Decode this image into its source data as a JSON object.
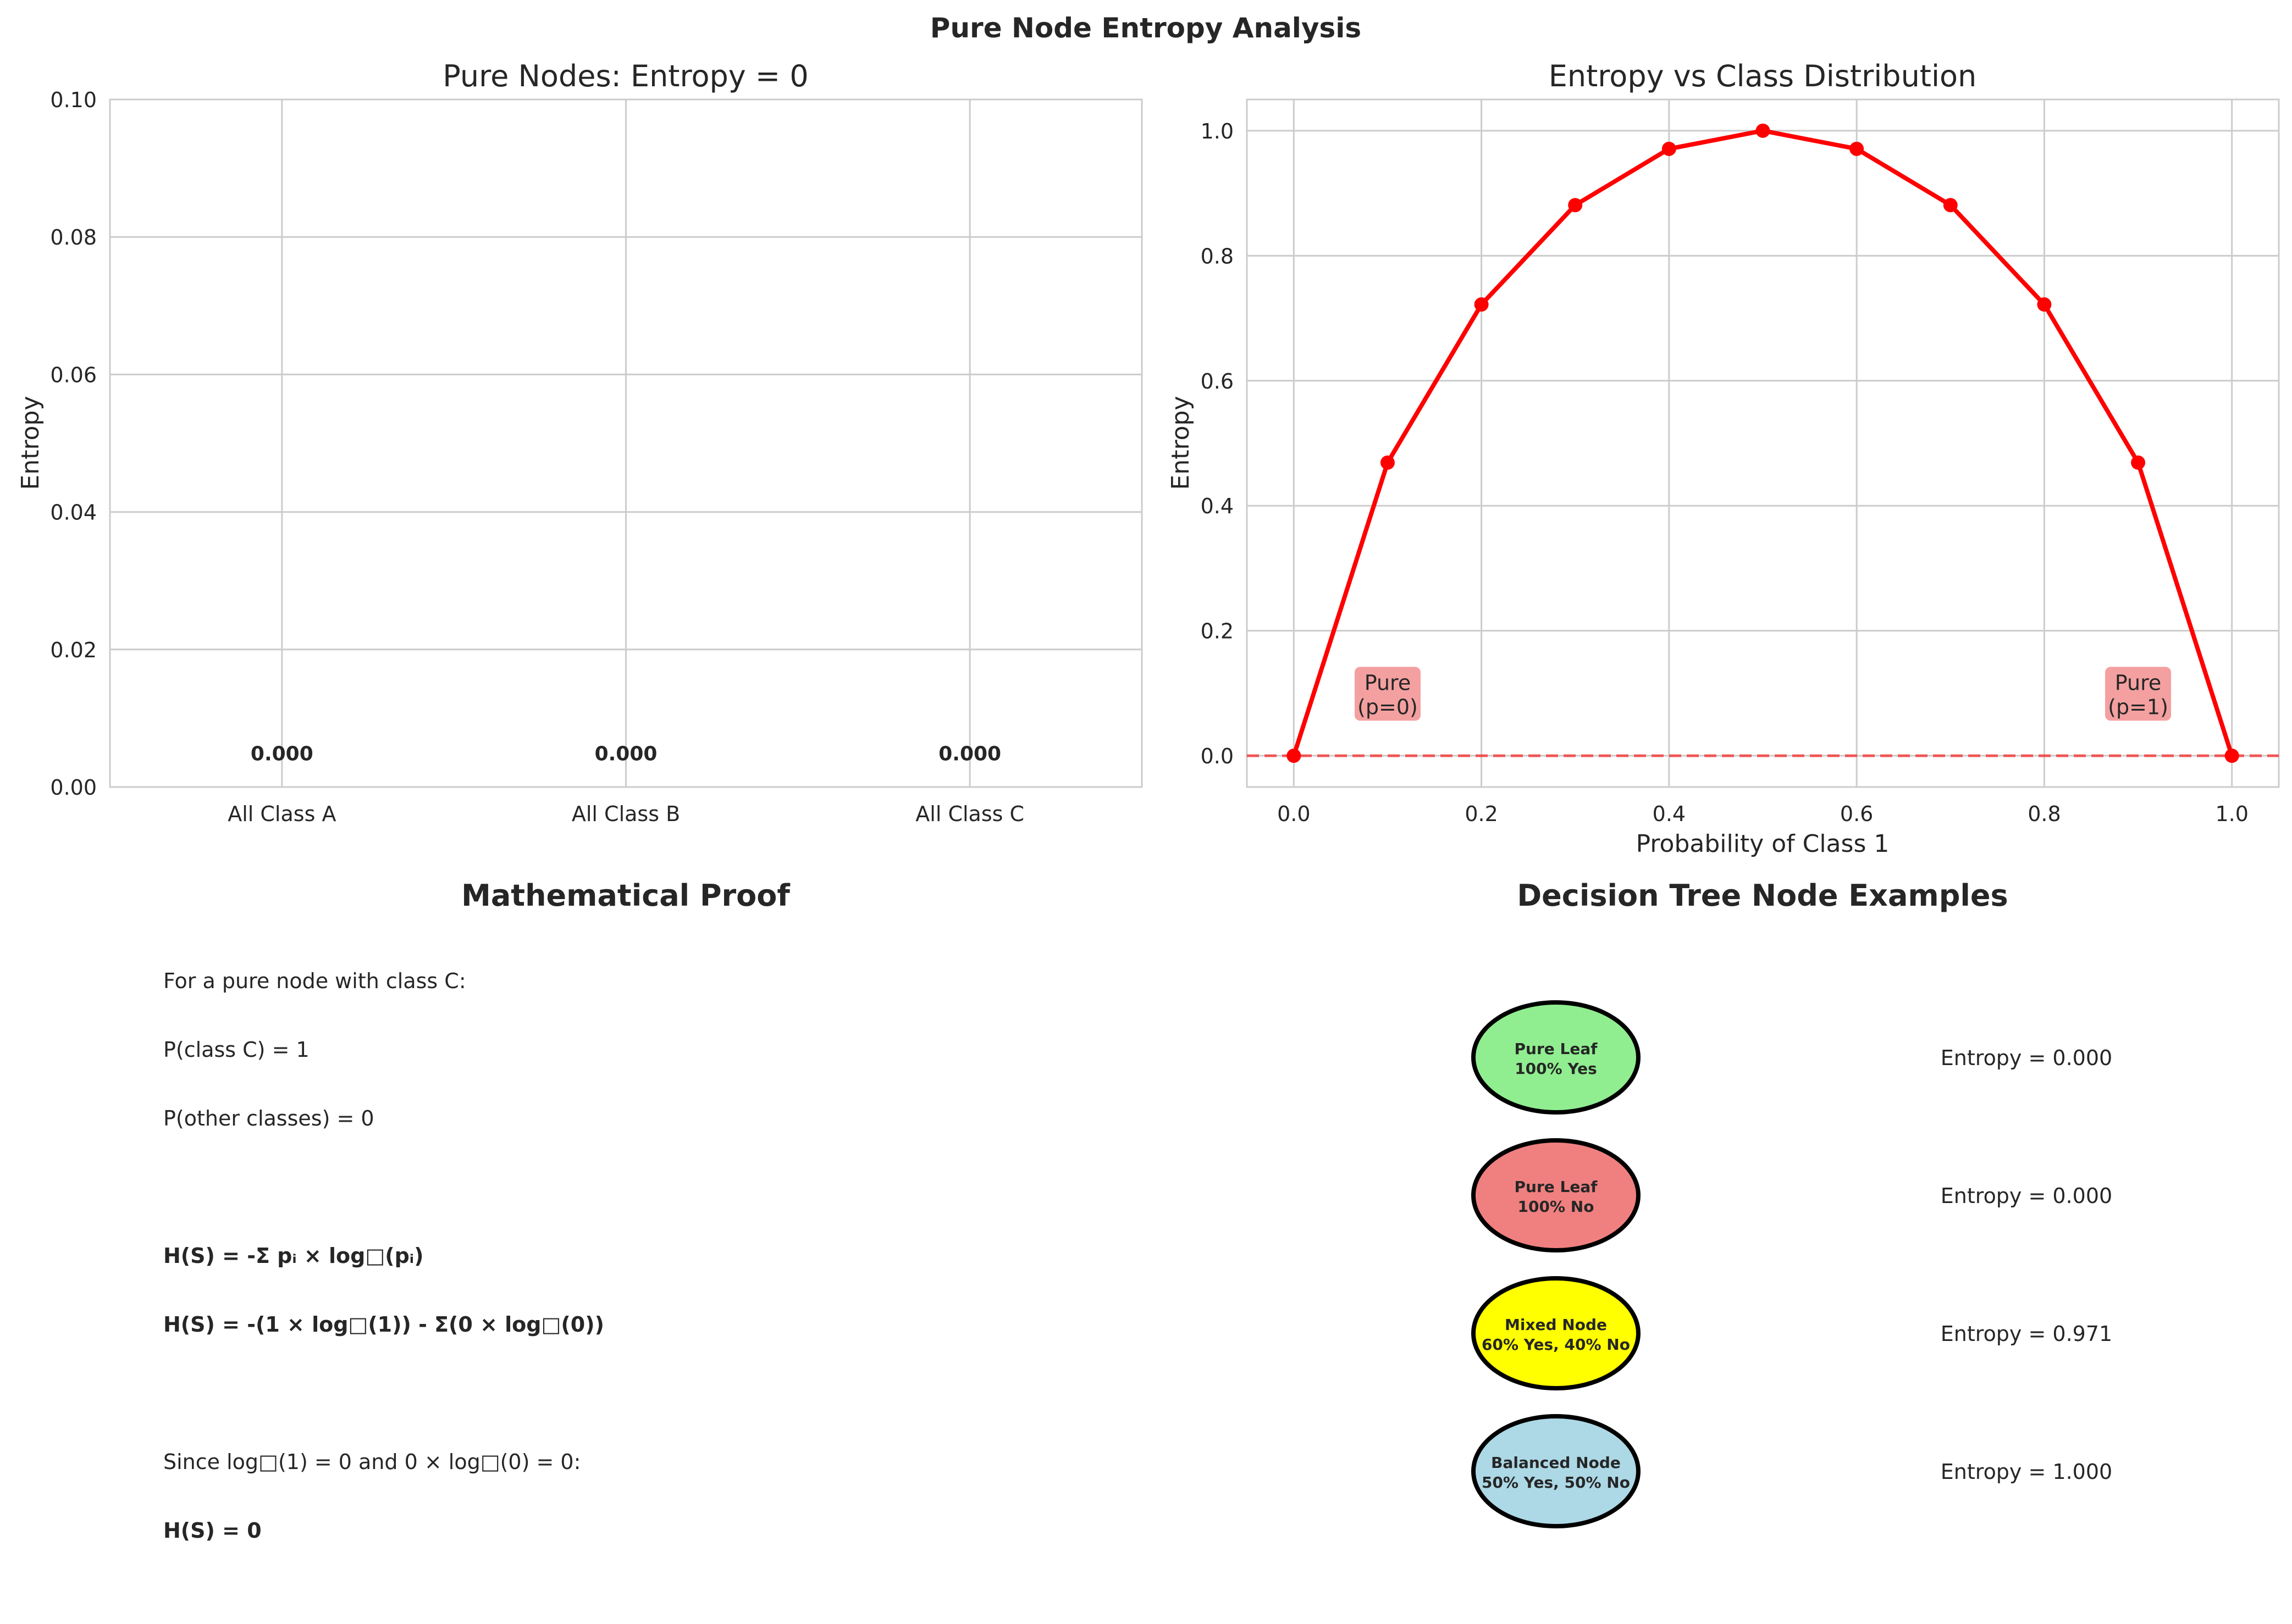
{
  "figure_title": "Pure Node Entropy Analysis",
  "chart_data": [
    {
      "type": "bar",
      "title": "Pure Nodes: Entropy = 0",
      "xlabel": "",
      "ylabel": "Entropy",
      "categories": [
        "All Class A",
        "All Class B",
        "All Class C"
      ],
      "values": [
        0.0,
        0.0,
        0.0
      ],
      "data_labels": [
        "0.000",
        "0.000",
        "0.000"
      ],
      "ylim": [
        0,
        0.1
      ],
      "yticks": [
        0.0,
        0.02,
        0.04,
        0.06,
        0.08,
        0.1
      ],
      "ytick_labels": [
        "0.00",
        "0.02",
        "0.04",
        "0.06",
        "0.08",
        "0.10"
      ],
      "grid": true
    },
    {
      "type": "line",
      "title": "Entropy vs Class Distribution",
      "xlabel": "Probability of Class 1",
      "ylabel": "Entropy",
      "x": [
        0.0,
        0.1,
        0.2,
        0.3,
        0.4,
        0.5,
        0.6,
        0.7,
        0.8,
        0.9,
        1.0
      ],
      "y": [
        0.0,
        0.469,
        0.722,
        0.881,
        0.971,
        1.0,
        0.971,
        0.881,
        0.722,
        0.469,
        0.0
      ],
      "xlim": [
        -0.05,
        1.05
      ],
      "ylim": [
        -0.05,
        1.05
      ],
      "xticks": [
        0.0,
        0.2,
        0.4,
        0.6,
        0.8,
        1.0
      ],
      "xtick_labels": [
        "0.0",
        "0.2",
        "0.4",
        "0.6",
        "0.8",
        "1.0"
      ],
      "yticks": [
        0.0,
        0.2,
        0.4,
        0.6,
        0.8,
        1.0
      ],
      "ytick_labels": [
        "0.0",
        "0.2",
        "0.4",
        "0.6",
        "0.8",
        "1.0"
      ],
      "line_color": "#ff0000",
      "reference_line": {
        "y": 0,
        "style": "dashed",
        "color": "#ff0000"
      },
      "annotations": [
        {
          "x": 0.1,
          "y": 0.1,
          "lines": [
            "Pure",
            "(p=0)"
          ],
          "bg": "#f08080"
        },
        {
          "x": 0.9,
          "y": 0.1,
          "lines": [
            "Pure",
            "(p=1)"
          ],
          "bg": "#f08080"
        }
      ],
      "grid": true
    }
  ],
  "proof": {
    "title": "Mathematical Proof",
    "lines": [
      {
        "text": "For a pure node with class C:",
        "bold": false
      },
      {
        "text": "P(class C) = 1",
        "bold": false
      },
      {
        "text": "P(other classes) = 0",
        "bold": false
      },
      {
        "text": "",
        "bold": false
      },
      {
        "text": "H(S) = -Σ pᵢ × log□(pᵢ)",
        "bold": true
      },
      {
        "text": "H(S) = -(1 × log□(1)) - Σ(0 × log□(0))",
        "bold": true
      },
      {
        "text": "",
        "bold": false
      },
      {
        "text": "Since log□(1) = 0 and 0 × log□(0) = 0:",
        "bold": false
      },
      {
        "text": "H(S) = 0",
        "bold": true
      }
    ]
  },
  "tree": {
    "title": "Decision Tree Node Examples",
    "nodes": [
      {
        "line1": "Pure Leaf",
        "line2": "100% Yes",
        "color": "#90ee90",
        "entropy": "Entropy = 0.000"
      },
      {
        "line1": "Pure Leaf",
        "line2": "100% No",
        "color": "#f08080",
        "entropy": "Entropy = 0.000"
      },
      {
        "line1": "Mixed Node",
        "line2": "60% Yes, 40% No",
        "color": "#ffff00",
        "entropy": "Entropy = 0.971"
      },
      {
        "line1": "Balanced Node",
        "line2": "50% Yes, 50% No",
        "color": "#add8e6",
        "entropy": "Entropy = 1.000"
      }
    ]
  }
}
